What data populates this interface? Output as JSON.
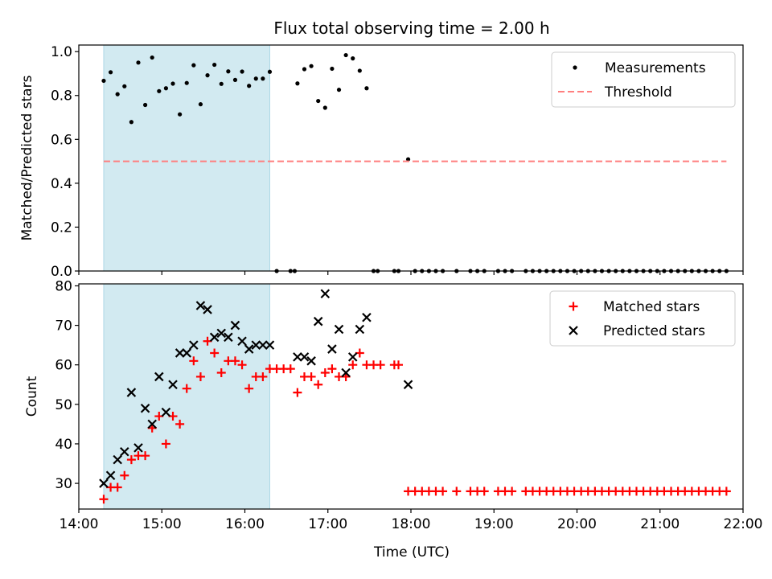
{
  "chart_data": {
    "title": "Flux total observing time = 2.00 h",
    "xlabel": "Time (UTC)",
    "xlim": [
      "14:00",
      "22:00"
    ],
    "xticks": [
      "14:00",
      "15:00",
      "16:00",
      "17:00",
      "18:00",
      "19:00",
      "20:00",
      "21:00",
      "22:00"
    ],
    "shaded_span": [
      "14:18",
      "16:18"
    ],
    "colors": {
      "shade": "#add8e6",
      "threshold": "#ff7f7f",
      "measurements": "#000000",
      "matched": "#ff0000",
      "predicted": "#000000"
    },
    "panels": [
      {
        "type": "scatter",
        "ylabel": "Matched/Predicted stars",
        "ylim": [
          0.0,
          1.03
        ],
        "yticks": [
          "0.0",
          "0.2",
          "0.4",
          "0.6",
          "0.8",
          "1.0"
        ],
        "legend": "top-right",
        "series": [
          {
            "name": "Measurements",
            "marker": "dot",
            "points": [
              [
                "14:18",
                0.867
              ],
              [
                "14:23",
                0.906
              ],
              [
                "14:28",
                0.806
              ],
              [
                "14:33",
                0.842
              ],
              [
                "14:38",
                0.679
              ],
              [
                "14:43",
                0.95
              ],
              [
                "14:48",
                0.757
              ],
              [
                "14:53",
                0.973
              ],
              [
                "14:58",
                0.82
              ],
              [
                "15:03",
                0.833
              ],
              [
                "15:08",
                0.854
              ],
              [
                "15:13",
                0.714
              ],
              [
                "15:18",
                0.857
              ],
              [
                "15:23",
                0.938
              ],
              [
                "15:28",
                0.76
              ],
              [
                "15:33",
                0.892
              ],
              [
                "15:38",
                0.94
              ],
              [
                "15:43",
                0.853
              ],
              [
                "15:48",
                0.91
              ],
              [
                "15:53",
                0.871
              ],
              [
                "15:58",
                0.909
              ],
              [
                "16:03",
                0.844
              ],
              [
                "16:08",
                0.877
              ],
              [
                "16:13",
                0.877
              ],
              [
                "16:18",
                0.908
              ],
              [
                "16:23",
                0.0
              ],
              [
                "16:33",
                0.0
              ],
              [
                "16:36",
                0.0
              ],
              [
                "16:38",
                0.855
              ],
              [
                "16:43",
                0.92
              ],
              [
                "16:48",
                0.934
              ],
              [
                "16:53",
                0.775
              ],
              [
                "16:58",
                0.744
              ],
              [
                "17:03",
                0.922
              ],
              [
                "17:08",
                0.826
              ],
              [
                "17:13",
                0.984
              ],
              [
                "17:18",
                0.969
              ],
              [
                "17:23",
                0.913
              ],
              [
                "17:28",
                0.833
              ],
              [
                "17:33",
                0.0
              ],
              [
                "17:36",
                0.0
              ],
              [
                "17:48",
                0.0
              ],
              [
                "17:51",
                0.0
              ],
              [
                "17:58",
                0.509
              ],
              [
                "18:03",
                0.0
              ],
              [
                "18:08",
                0.0
              ],
              [
                "18:13",
                0.0
              ],
              [
                "18:18",
                0.0
              ],
              [
                "18:23",
                0.0
              ],
              [
                "18:33",
                0.0
              ],
              [
                "18:43",
                0.0
              ],
              [
                "18:48",
                0.0
              ],
              [
                "18:53",
                0.0
              ],
              [
                "19:03",
                0.0
              ],
              [
                "19:08",
                0.0
              ],
              [
                "19:13",
                0.0
              ],
              [
                "19:23",
                0.0
              ],
              [
                "19:28",
                0.0
              ],
              [
                "19:33",
                0.0
              ],
              [
                "19:38",
                0.0
              ],
              [
                "19:43",
                0.0
              ],
              [
                "19:48",
                0.0
              ],
              [
                "19:53",
                0.0
              ],
              [
                "19:58",
                0.0
              ],
              [
                "20:03",
                0.0
              ],
              [
                "20:08",
                0.0
              ],
              [
                "20:13",
                0.0
              ],
              [
                "20:18",
                0.0
              ],
              [
                "20:23",
                0.0
              ],
              [
                "20:28",
                0.0
              ],
              [
                "20:33",
                0.0
              ],
              [
                "20:38",
                0.0
              ],
              [
                "20:43",
                0.0
              ],
              [
                "20:48",
                0.0
              ],
              [
                "20:53",
                0.0
              ],
              [
                "20:58",
                0.0
              ],
              [
                "21:03",
                0.0
              ],
              [
                "21:08",
                0.0
              ],
              [
                "21:13",
                0.0
              ],
              [
                "21:18",
                0.0
              ],
              [
                "21:23",
                0.0
              ],
              [
                "21:28",
                0.0
              ],
              [
                "21:33",
                0.0
              ],
              [
                "21:38",
                0.0
              ],
              [
                "21:43",
                0.0
              ],
              [
                "21:48",
                0.0
              ]
            ]
          },
          {
            "name": "Threshold",
            "style": "dashed-line",
            "points": [
              [
                "14:18",
                0.5
              ],
              [
                "21:48",
                0.5
              ]
            ]
          }
        ]
      },
      {
        "type": "scatter",
        "ylabel": "Count",
        "ylim": [
          23.5,
          80.5
        ],
        "yticks": [
          "30",
          "40",
          "50",
          "60",
          "70",
          "80"
        ],
        "legend": "top-right",
        "series": [
          {
            "name": "Matched stars",
            "marker": "plus",
            "points": [
              [
                "14:18",
                26
              ],
              [
                "14:23",
                29
              ],
              [
                "14:28",
                29
              ],
              [
                "14:33",
                32
              ],
              [
                "14:38",
                36
              ],
              [
                "14:43",
                37
              ],
              [
                "14:48",
                37
              ],
              [
                "14:53",
                44
              ],
              [
                "14:58",
                47
              ],
              [
                "15:03",
                40
              ],
              [
                "15:08",
                47
              ],
              [
                "15:13",
                45
              ],
              [
                "15:18",
                54
              ],
              [
                "15:23",
                61
              ],
              [
                "15:28",
                57
              ],
              [
                "15:33",
                66
              ],
              [
                "15:38",
                63
              ],
              [
                "15:43",
                58
              ],
              [
                "15:48",
                61
              ],
              [
                "15:53",
                61
              ],
              [
                "15:58",
                60
              ],
              [
                "16:03",
                54
              ],
              [
                "16:08",
                57
              ],
              [
                "16:13",
                57
              ],
              [
                "16:18",
                59
              ],
              [
                "16:23",
                59
              ],
              [
                "16:28",
                59
              ],
              [
                "16:33",
                59
              ],
              [
                "16:38",
                53
              ],
              [
                "16:43",
                57
              ],
              [
                "16:48",
                57
              ],
              [
                "16:53",
                55
              ],
              [
                "16:58",
                58
              ],
              [
                "17:03",
                59
              ],
              [
                "17:08",
                57
              ],
              [
                "17:13",
                57
              ],
              [
                "17:18",
                60
              ],
              [
                "17:23",
                63
              ],
              [
                "17:28",
                60
              ],
              [
                "17:33",
                60
              ],
              [
                "17:38",
                60
              ],
              [
                "17:48",
                60
              ],
              [
                "17:51",
                60
              ],
              [
                "17:58",
                28
              ],
              [
                "18:03",
                28
              ],
              [
                "18:08",
                28
              ],
              [
                "18:13",
                28
              ],
              [
                "18:18",
                28
              ],
              [
                "18:23",
                28
              ],
              [
                "18:33",
                28
              ],
              [
                "18:43",
                28
              ],
              [
                "18:48",
                28
              ],
              [
                "18:53",
                28
              ],
              [
                "19:03",
                28
              ],
              [
                "19:08",
                28
              ],
              [
                "19:13",
                28
              ],
              [
                "19:23",
                28
              ],
              [
                "19:28",
                28
              ],
              [
                "19:33",
                28
              ],
              [
                "19:38",
                28
              ],
              [
                "19:43",
                28
              ],
              [
                "19:48",
                28
              ],
              [
                "19:53",
                28
              ],
              [
                "19:58",
                28
              ],
              [
                "20:03",
                28
              ],
              [
                "20:08",
                28
              ],
              [
                "20:13",
                28
              ],
              [
                "20:18",
                28
              ],
              [
                "20:23",
                28
              ],
              [
                "20:28",
                28
              ],
              [
                "20:33",
                28
              ],
              [
                "20:38",
                28
              ],
              [
                "20:43",
                28
              ],
              [
                "20:48",
                28
              ],
              [
                "20:53",
                28
              ],
              [
                "20:58",
                28
              ],
              [
                "21:03",
                28
              ],
              [
                "21:08",
                28
              ],
              [
                "21:13",
                28
              ],
              [
                "21:18",
                28
              ],
              [
                "21:23",
                28
              ],
              [
                "21:28",
                28
              ],
              [
                "21:33",
                28
              ],
              [
                "21:38",
                28
              ],
              [
                "21:43",
                28
              ],
              [
                "21:48",
                28
              ]
            ]
          },
          {
            "name": "Predicted stars",
            "marker": "cross",
            "points": [
              [
                "14:18",
                30
              ],
              [
                "14:23",
                32
              ],
              [
                "14:28",
                36
              ],
              [
                "14:33",
                38
              ],
              [
                "14:38",
                53
              ],
              [
                "14:43",
                39
              ],
              [
                "14:48",
                49
              ],
              [
                "14:53",
                45
              ],
              [
                "14:58",
                57
              ],
              [
                "15:03",
                48
              ],
              [
                "15:08",
                55
              ],
              [
                "15:13",
                63
              ],
              [
                "15:18",
                63
              ],
              [
                "15:23",
                65
              ],
              [
                "15:28",
                75
              ],
              [
                "15:33",
                74
              ],
              [
                "15:38",
                67
              ],
              [
                "15:43",
                68
              ],
              [
                "15:48",
                67
              ],
              [
                "15:53",
                70
              ],
              [
                "15:58",
                66
              ],
              [
                "16:03",
                64
              ],
              [
                "16:08",
                65
              ],
              [
                "16:13",
                65
              ],
              [
                "16:18",
                65
              ],
              [
                "16:38",
                62
              ],
              [
                "16:43",
                62
              ],
              [
                "16:48",
                61
              ],
              [
                "16:53",
                71
              ],
              [
                "16:58",
                78
              ],
              [
                "17:03",
                64
              ],
              [
                "17:08",
                69
              ],
              [
                "17:13",
                58
              ],
              [
                "17:18",
                62
              ],
              [
                "17:23",
                69
              ],
              [
                "17:28",
                72
              ],
              [
                "17:58",
                55
              ]
            ]
          }
        ]
      }
    ]
  }
}
